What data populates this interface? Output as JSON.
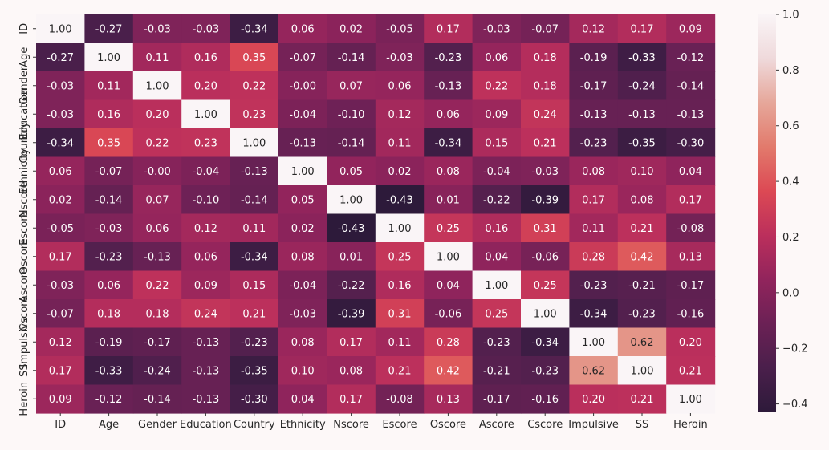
{
  "chart_data": {
    "type": "heatmap",
    "title": "",
    "xlabel": "",
    "ylabel": "",
    "labels": [
      "ID",
      "Age",
      "Gender",
      "Education",
      "Country",
      "Ethnicity",
      "Nscore",
      "Escore",
      "Oscore",
      "Ascore",
      "Cscore",
      "Impulsive",
      "SS",
      "Heroin"
    ],
    "matrix": [
      [
        1.0,
        -0.27,
        -0.03,
        -0.03,
        -0.34,
        0.06,
        0.02,
        -0.05,
        0.17,
        -0.03,
        -0.07,
        0.12,
        0.17,
        0.09
      ],
      [
        -0.27,
        1.0,
        0.11,
        0.16,
        0.35,
        -0.07,
        -0.14,
        -0.03,
        -0.23,
        0.06,
        0.18,
        -0.19,
        -0.33,
        -0.12
      ],
      [
        -0.03,
        0.11,
        1.0,
        0.2,
        0.22,
        -0.0,
        0.07,
        0.06,
        -0.13,
        0.22,
        0.18,
        -0.17,
        -0.24,
        -0.14
      ],
      [
        -0.03,
        0.16,
        0.2,
        1.0,
        0.23,
        -0.04,
        -0.1,
        0.12,
        0.06,
        0.09,
        0.24,
        -0.13,
        -0.13,
        -0.13
      ],
      [
        -0.34,
        0.35,
        0.22,
        0.23,
        1.0,
        -0.13,
        -0.14,
        0.11,
        -0.34,
        0.15,
        0.21,
        -0.23,
        -0.35,
        -0.3
      ],
      [
        0.06,
        -0.07,
        -0.0,
        -0.04,
        -0.13,
        1.0,
        0.05,
        0.02,
        0.08,
        -0.04,
        -0.03,
        0.08,
        0.1,
        0.04
      ],
      [
        0.02,
        -0.14,
        0.07,
        -0.1,
        -0.14,
        0.05,
        1.0,
        -0.43,
        0.01,
        -0.22,
        -0.39,
        0.17,
        0.08,
        0.17
      ],
      [
        -0.05,
        -0.03,
        0.06,
        0.12,
        0.11,
        0.02,
        -0.43,
        1.0,
        0.25,
        0.16,
        0.31,
        0.11,
        0.21,
        -0.08
      ],
      [
        0.17,
        -0.23,
        -0.13,
        0.06,
        -0.34,
        0.08,
        0.01,
        0.25,
        1.0,
        0.04,
        -0.06,
        0.28,
        0.42,
        0.13
      ],
      [
        -0.03,
        0.06,
        0.22,
        0.09,
        0.15,
        -0.04,
        -0.22,
        0.16,
        0.04,
        1.0,
        0.25,
        -0.23,
        -0.21,
        -0.17
      ],
      [
        -0.07,
        0.18,
        0.18,
        0.24,
        0.21,
        -0.03,
        -0.39,
        0.31,
        -0.06,
        0.25,
        1.0,
        -0.34,
        -0.23,
        -0.16
      ],
      [
        0.12,
        -0.19,
        -0.17,
        -0.13,
        -0.23,
        0.08,
        0.17,
        0.11,
        0.28,
        -0.23,
        -0.34,
        1.0,
        0.62,
        0.2
      ],
      [
        0.17,
        -0.33,
        -0.24,
        -0.13,
        -0.35,
        0.1,
        0.08,
        0.21,
        0.42,
        -0.21,
        -0.23,
        0.62,
        1.0,
        0.21
      ],
      [
        0.09,
        -0.12,
        -0.14,
        -0.13,
        -0.3,
        0.04,
        0.17,
        -0.08,
        0.13,
        -0.17,
        -0.16,
        0.2,
        0.21,
        1.0
      ]
    ],
    "value_range": [
      -0.43,
      1.0
    ],
    "colorbar": {
      "ticks": [
        1.0,
        0.8,
        0.6,
        0.4,
        0.2,
        0.0,
        -0.2,
        -0.4
      ],
      "tick_labels": [
        "1.0",
        "0.8",
        "0.6",
        "0.4",
        "0.2",
        "0.0",
        "−0.2",
        "−0.4"
      ]
    },
    "colormap": [
      "#2d1a3a",
      "#4a1f4b",
      "#6b2155",
      "#91245c",
      "#bb2f5c",
      "#dc4954",
      "#e27a6c",
      "#e6a79a",
      "#efd9db",
      "#faf5f7"
    ],
    "grid": false,
    "legend": "colorbar-right"
  }
}
